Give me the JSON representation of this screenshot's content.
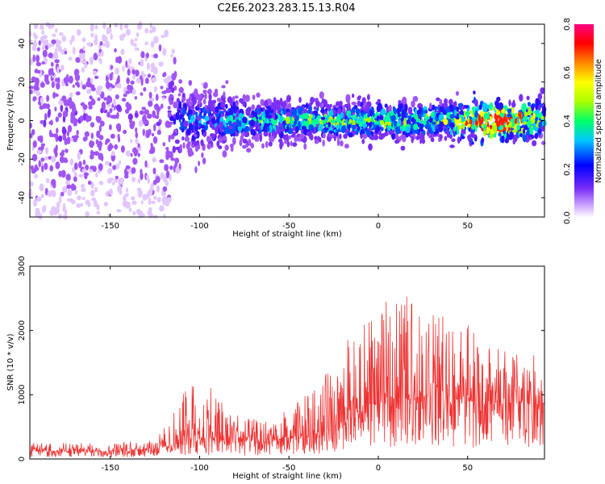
{
  "title": "C2E6.2023.283.15.13.R04",
  "chart_data": [
    {
      "type": "heatmap",
      "xlabel": "Height of straight line (km)",
      "ylabel": "Frequency (Hz)",
      "xlim": [
        -195,
        93
      ],
      "ylim": [
        -50,
        50
      ],
      "xticks": [
        -150,
        -100,
        -50,
        0,
        50
      ],
      "yticks": [
        -40,
        -20,
        0,
        20,
        40
      ],
      "colorbar": {
        "label": "Normalized spectral amplitude",
        "range": [
          0.0,
          0.8
        ],
        "ticks": [
          "0.0",
          "0.2",
          "0.4",
          "0.6",
          "0.8"
        ],
        "colormap": [
          "#ffffff",
          "#7b2ff7",
          "#0000ff",
          "#00c8ff",
          "#00ff66",
          "#aaff00",
          "#ffff00",
          "#ff8800",
          "#ff0000",
          "#ff007f"
        ]
      },
      "description_points": [
        {
          "x": -180,
          "freq_spread": 50,
          "level": 0.08
        },
        {
          "x": -120,
          "freq_spread": 50,
          "level": 0.07
        },
        {
          "x": -110,
          "freq_spread": 18,
          "level": 0.2
        },
        {
          "x": -60,
          "freq_spread": 10,
          "level": 0.3
        },
        {
          "x": -30,
          "freq_spread": 10,
          "level": 0.35
        },
        {
          "x": 0,
          "freq_spread": 10,
          "level": 0.35
        },
        {
          "x": 40,
          "freq_spread": 10,
          "level": 0.35
        },
        {
          "x": 65,
          "freq_spread": 10,
          "level": 0.75
        },
        {
          "x": 90,
          "freq_spread": 12,
          "level": 0.35
        }
      ]
    },
    {
      "type": "area",
      "xlabel": "Height of straight line (km)",
      "ylabel": "SNR (10 * v/v)",
      "xlim": [
        -195,
        93
      ],
      "ylim": [
        0,
        3000
      ],
      "xticks": [
        -150,
        -100,
        -50,
        0,
        50
      ],
      "yticks": [
        0,
        1000,
        2000,
        3000
      ],
      "color": "#ee3333",
      "envelope": {
        "x": [
          -195,
          -150,
          -125,
          -115,
          -105,
          -95,
          -85,
          -75,
          -65,
          -55,
          -45,
          -35,
          -25,
          -20,
          -10,
          -5,
          0,
          10,
          20,
          30,
          40,
          50,
          60,
          70,
          80,
          93
        ],
        "base": [
          120,
          120,
          150,
          220,
          280,
          300,
          260,
          250,
          240,
          280,
          330,
          400,
          480,
          540,
          700,
          820,
          850,
          900,
          950,
          1000,
          950,
          900,
          850,
          850,
          850,
          850
        ],
        "peak": [
          250,
          250,
          300,
          700,
          1250,
          1300,
          900,
          650,
          600,
          700,
          900,
          1100,
          1500,
          1800,
          2150,
          2150,
          2250,
          2700,
          2600,
          2400,
          2350,
          2100,
          1800,
          1700,
          1650,
          1600
        ]
      }
    }
  ]
}
